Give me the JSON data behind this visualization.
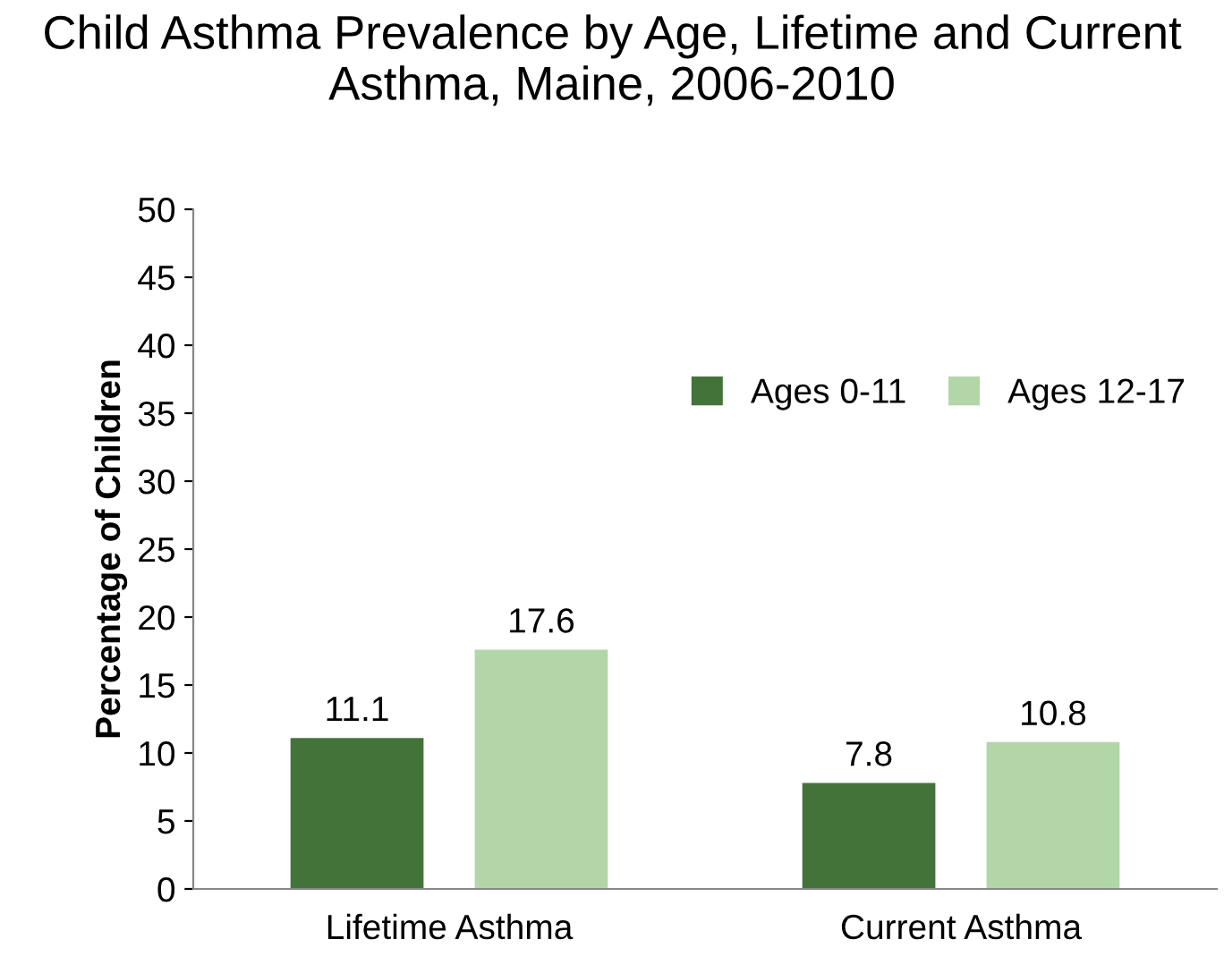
{
  "chart_data": {
    "type": "bar",
    "title": "Child Asthma Prevalence by Age, Lifetime and Current Asthma, Maine, 2006-2010",
    "ylabel": "Percentage of Children",
    "categories": [
      "Lifetime Asthma",
      "Current Asthma"
    ],
    "series": [
      {
        "name": "Ages 0-11",
        "color": "#44733a",
        "values": [
          11.1,
          7.8
        ]
      },
      {
        "name": "Ages 12-17",
        "color": "#b3d6a8",
        "values": [
          17.6,
          10.8
        ]
      }
    ],
    "ylim": [
      0,
      50
    ],
    "yticks": [
      0,
      5,
      10,
      15,
      20,
      25,
      30,
      35,
      40,
      45,
      50
    ],
    "data_labels": true,
    "legend": "top right",
    "grid": false
  }
}
